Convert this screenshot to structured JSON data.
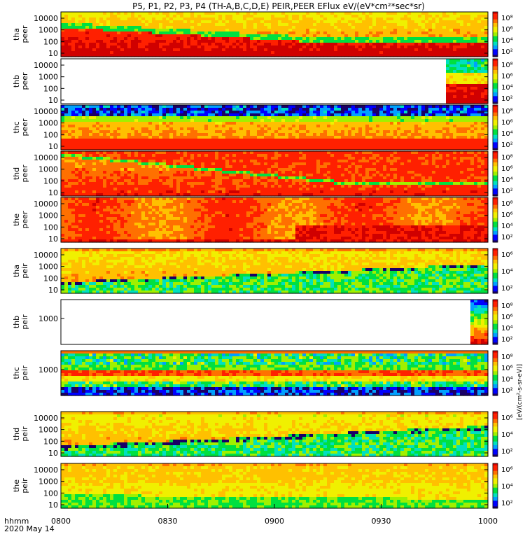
{
  "title": "P5, P1, P2, P3, P4 (TH-A,B,C,D,E) PEIR,PEER EFlux eV/(eV*cm²*sec*sr)",
  "chart_data": {
    "type": "heatmap",
    "x_axis": {
      "ticks": [
        "0800",
        "0830",
        "0900",
        "0930",
        "1000"
      ],
      "label_line1": "hhmm",
      "label_line2": "2020 May 14"
    },
    "colorbar_unit": "[eV/(cm²-s-sr-eV)]",
    "colormap": [
      "#1a0066",
      "#0000ff",
      "#00a0ff",
      "#00e0c0",
      "#00e040",
      "#a0f000",
      "#f0f000",
      "#ffc000",
      "#ff7000",
      "#ff2000",
      "#d00000"
    ],
    "panels": [
      {
        "id": "tha-peer",
        "ylabel_1": "tha",
        "ylabel_2": "peer",
        "yticks": [
          "10000",
          "1000",
          "100",
          "10"
        ],
        "cbticks": [
          "10⁸",
          "10⁶",
          "10⁴",
          "10²"
        ],
        "pattern": "peer_a"
      },
      {
        "id": "thb-peer",
        "ylabel_1": "thb",
        "ylabel_2": "peer",
        "yticks": [
          "10000",
          "1000",
          "100",
          "10"
        ],
        "cbticks": [
          "10⁸",
          "10⁶",
          "10⁴",
          "10²"
        ],
        "pattern": "peer_b",
        "data_start": 0.905
      },
      {
        "id": "thc-peer",
        "ylabel_1": "thc",
        "ylabel_2": "peer",
        "yticks": [
          "10000",
          "1000",
          "100",
          "10"
        ],
        "cbticks": [
          "10⁸",
          "10⁶",
          "10⁴",
          "10²"
        ],
        "pattern": "peer_c"
      },
      {
        "id": "thd-peer",
        "ylabel_1": "thd",
        "ylabel_2": "peer",
        "yticks": [
          "10000",
          "1000",
          "100",
          "10"
        ],
        "cbticks": [
          "10⁸",
          "10⁶",
          "10⁴",
          "10²"
        ],
        "pattern": "peer_d"
      },
      {
        "id": "the-peer",
        "ylabel_1": "the",
        "ylabel_2": "peer",
        "yticks": [
          "10000",
          "1000",
          "100",
          "10"
        ],
        "cbticks": [
          "10⁸",
          "10⁶",
          "10⁴",
          "10²"
        ],
        "pattern": "peer_e"
      },
      {
        "id": "tha-peir",
        "ylabel_1": "tha",
        "ylabel_2": "peir",
        "yticks": [
          "10000",
          "1000",
          "100",
          "10"
        ],
        "cbticks": [
          "10⁶",
          "10⁴",
          "10²"
        ],
        "pattern": "peir_a"
      },
      {
        "id": "thb-peir",
        "ylabel_1": "thb",
        "ylabel_2": "peir",
        "yticks": [
          "1000"
        ],
        "cbticks": [
          "10⁸",
          "10⁶",
          "10⁴",
          "10²"
        ],
        "pattern": "peir_b",
        "data_start": 0.955
      },
      {
        "id": "thc-peir",
        "ylabel_1": "thc",
        "ylabel_2": "peir",
        "yticks": [
          "1000"
        ],
        "cbticks": [
          "10⁸",
          "10⁶",
          "10⁴",
          "10²"
        ],
        "pattern": "peir_c"
      },
      {
        "id": "thd-peir",
        "ylabel_1": "thd",
        "ylabel_2": "peir",
        "yticks": [
          "10000",
          "1000",
          "100",
          "10"
        ],
        "cbticks": [
          "10⁶",
          "10⁴",
          "10²"
        ],
        "pattern": "peir_d"
      },
      {
        "id": "the-peir",
        "ylabel_1": "the",
        "ylabel_2": "peir",
        "yticks": [
          "10000",
          "1000",
          "100",
          "10"
        ],
        "cbticks": [
          "10⁶",
          "10⁴",
          "10²"
        ],
        "pattern": "peir_e"
      }
    ]
  }
}
